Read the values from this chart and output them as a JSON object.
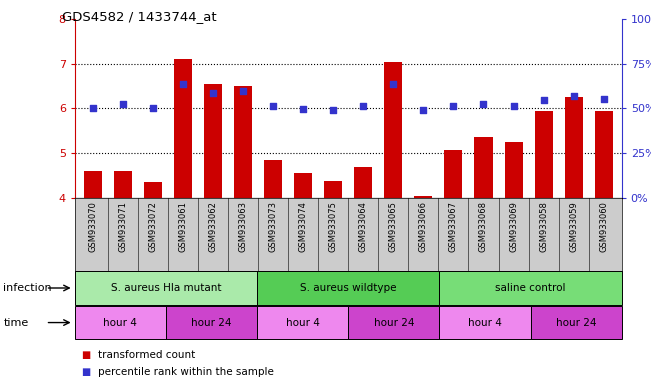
{
  "title": "GDS4582 / 1433744_at",
  "samples": [
    "GSM933070",
    "GSM933071",
    "GSM933072",
    "GSM933061",
    "GSM933062",
    "GSM933063",
    "GSM933073",
    "GSM933074",
    "GSM933075",
    "GSM933064",
    "GSM933065",
    "GSM933066",
    "GSM933067",
    "GSM933068",
    "GSM933069",
    "GSM933058",
    "GSM933059",
    "GSM933060"
  ],
  "bar_values": [
    4.6,
    4.6,
    4.35,
    7.1,
    6.55,
    6.5,
    4.85,
    4.55,
    4.38,
    4.7,
    7.05,
    4.05,
    5.08,
    5.35,
    5.25,
    5.95,
    6.25,
    5.95
  ],
  "dot_values": [
    6.0,
    6.1,
    6.0,
    6.55,
    6.35,
    6.4,
    6.05,
    5.98,
    5.97,
    6.05,
    6.55,
    5.97,
    6.05,
    6.1,
    6.05,
    6.2,
    6.27,
    6.22
  ],
  "ylim_left": [
    4,
    8
  ],
  "ylim_right": [
    0,
    100
  ],
  "yticks_left": [
    4,
    5,
    6,
    7,
    8
  ],
  "yticks_right": [
    0,
    25,
    50,
    75,
    100
  ],
  "bar_color": "#cc0000",
  "dot_color": "#3333cc",
  "infection_groups": [
    {
      "label": "S. aureus Hla mutant",
      "start": 0,
      "end": 6,
      "color": "#aaeaaa"
    },
    {
      "label": "S. aureus wildtype",
      "start": 6,
      "end": 12,
      "color": "#55cc55"
    },
    {
      "label": "saline control",
      "start": 12,
      "end": 18,
      "color": "#77dd77"
    }
  ],
  "time_groups": [
    {
      "label": "hour 4",
      "start": 0,
      "end": 3,
      "color": "#ee88ee"
    },
    {
      "label": "hour 24",
      "start": 3,
      "end": 6,
      "color": "#cc44cc"
    },
    {
      "label": "hour 4",
      "start": 6,
      "end": 9,
      "color": "#ee88ee"
    },
    {
      "label": "hour 24",
      "start": 9,
      "end": 12,
      "color": "#cc44cc"
    },
    {
      "label": "hour 4",
      "start": 12,
      "end": 15,
      "color": "#ee88ee"
    },
    {
      "label": "hour 24",
      "start": 15,
      "end": 18,
      "color": "#cc44cc"
    }
  ],
  "legend_items": [
    {
      "label": "transformed count",
      "color": "#cc0000"
    },
    {
      "label": "percentile rank within the sample",
      "color": "#3333cc"
    }
  ],
  "infection_label": "infection",
  "time_label": "time",
  "left_axis_color": "#cc0000",
  "right_axis_color": "#3333cc",
  "sample_bg_color": "#cccccc",
  "grid_dotted_color": "#000000"
}
